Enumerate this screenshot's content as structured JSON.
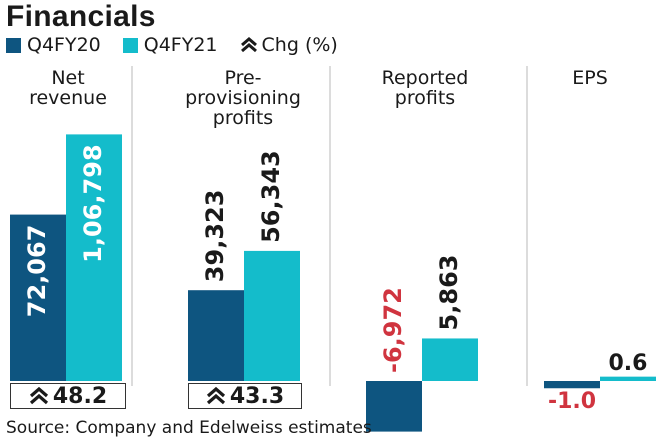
{
  "title": "Financials",
  "legend": {
    "series1": "Q4FY20",
    "series2": "Q4FY21",
    "chg_label": "Chg (%)"
  },
  "colors": {
    "q4fy20": "#0e5580",
    "q4fy21": "#14bccb",
    "negative_label": "#d0343f",
    "divider": "#b9b9b9",
    "text": "#1a1a1a"
  },
  "chart_data": {
    "type": "bar",
    "title": "Financials",
    "categories": [
      "Net revenue",
      "Pre-provisioning profits",
      "Reported profits",
      "EPS"
    ],
    "category_lines": [
      [
        "Net",
        "revenue"
      ],
      [
        "Pre-",
        "provisioning",
        "profits"
      ],
      [
        "Reported",
        "profits"
      ],
      [
        "EPS"
      ]
    ],
    "series": [
      {
        "name": "Q4FY20",
        "values": [
          72067,
          39323,
          -6972,
          -1.0
        ],
        "labels": [
          "72,067",
          "39,323",
          "-6,972",
          "-1.0"
        ]
      },
      {
        "name": "Q4FY21",
        "values": [
          106798,
          56343,
          5863,
          0.6
        ],
        "labels": [
          "1,06,798",
          "56,343",
          "5,863",
          "0.6"
        ]
      }
    ],
    "change_pct": [
      "48.2",
      "43.3",
      null,
      null
    ],
    "panel_scales": [
      110000,
      110000,
      35000,
      35
    ],
    "legend_position": "top-left",
    "grid": false
  },
  "source": "Source: Company and Edelweiss estimates"
}
